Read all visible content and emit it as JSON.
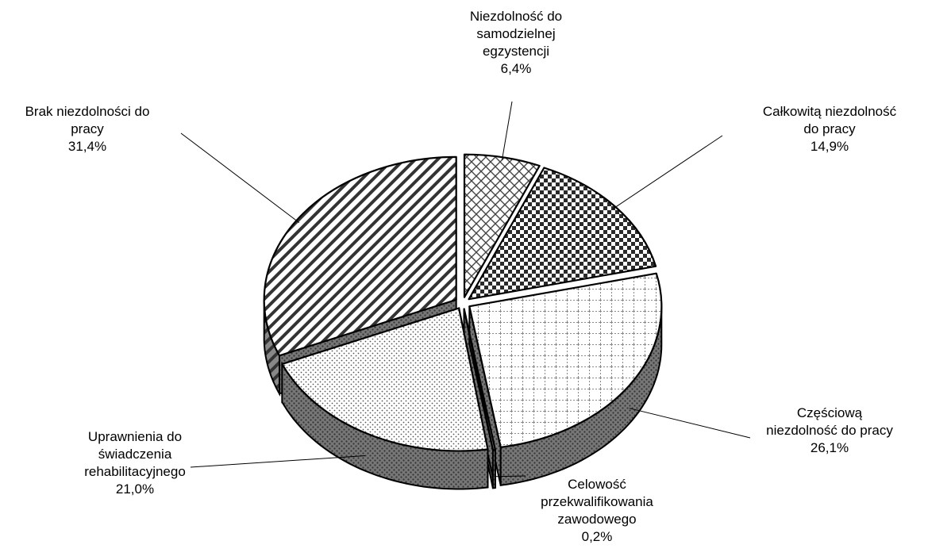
{
  "chart_data": {
    "type": "pie",
    "style": "3d-exploded-patterned",
    "slices": [
      {
        "label_lines": [
          "Niezdolność do",
          "samodzielnej",
          "egzystencji"
        ],
        "value_text": "6,4%",
        "value": 6.4,
        "pattern": "diagonal-lattice",
        "color": "#ffffff"
      },
      {
        "label_lines": [
          "Całkowitą niezdolność",
          "do pracy"
        ],
        "value_text": "14,9%",
        "value": 14.9,
        "pattern": "checkerboard",
        "color": "#222222"
      },
      {
        "label_lines": [
          "Częściową",
          "niezdolność do pracy"
        ],
        "value_text": "26,1%",
        "value": 26.1,
        "pattern": "grid",
        "color": "#ffffff"
      },
      {
        "label_lines": [
          "Celowość",
          "przekwalifikowania",
          "zawodowego"
        ],
        "value_text": "0,2%",
        "value": 0.2,
        "pattern": "solid",
        "color": "#666666"
      },
      {
        "label_lines": [
          "Uprawnienia do",
          "świadczenia",
          "rehabilitacyjnego"
        ],
        "value_text": "21,0%",
        "value": 21.0,
        "pattern": "dots",
        "color": "#ffffff"
      },
      {
        "label_lines": [
          "Brak niezdolności do",
          "pracy"
        ],
        "value_text": "31,4%",
        "value": 31.4,
        "pattern": "diagonal-stripes",
        "color": "#ffffff"
      }
    ],
    "title": "",
    "legend": "none"
  }
}
